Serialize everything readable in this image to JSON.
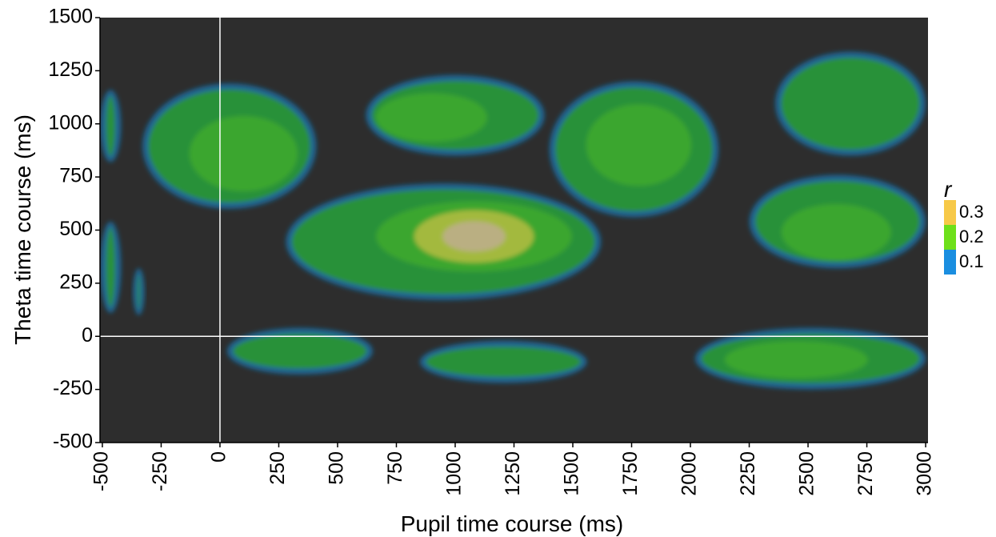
{
  "chart_data": {
    "type": "heatmap",
    "title": "",
    "xlabel": "Pupil time course (ms)",
    "ylabel": "Theta time course (ms)",
    "xlim": [
      -510,
      3010
    ],
    "ylim": [
      -500,
      1500
    ],
    "x_ticks": [
      -500,
      -250,
      0,
      250,
      500,
      750,
      1000,
      1250,
      1500,
      1750,
      2000,
      2250,
      2500,
      2750,
      3000
    ],
    "y_ticks": [
      -500,
      -250,
      0,
      250,
      500,
      750,
      1000,
      1250,
      1500
    ],
    "x_tick_labels": [
      "-500",
      "-250",
      "0",
      "250",
      "500",
      "750",
      "1000",
      "1250",
      "1500",
      "1750",
      "2000",
      "2250",
      "2500",
      "2750",
      "3000"
    ],
    "y_tick_labels": [
      "-500",
      "-250",
      "0",
      "250",
      "500",
      "750",
      "1000",
      "1250",
      "1500"
    ],
    "reference_lines": {
      "x": 0,
      "y": 0
    },
    "background_color": "#2d2d2d",
    "reference_line_color": "#ffffff",
    "legend": {
      "title": "r",
      "placement": "right",
      "entries": [
        {
          "label": "0.3",
          "value": 0.3,
          "color": "#f7c948"
        },
        {
          "label": "0.2",
          "value": 0.2,
          "color": "#6ee01a"
        },
        {
          "label": "0.1",
          "value": 0.1,
          "color": "#1a8ee0"
        }
      ]
    },
    "regions": [
      {
        "x_center": 1080,
        "y_center": 470,
        "x_extent": [
          280,
          1620
        ],
        "y_extent": [
          170,
          720
        ],
        "peak_r": 0.3
      },
      {
        "x_center": 1780,
        "y_center": 900,
        "x_extent": [
          1400,
          2120
        ],
        "y_extent": [
          560,
          1200
        ],
        "peak_r": 0.23
      },
      {
        "x_center": 900,
        "y_center": 1030,
        "x_extent": [
          620,
          1380
        ],
        "y_extent": [
          850,
          1230
        ],
        "peak_r": 0.21
      },
      {
        "x_center": 100,
        "y_center": 860,
        "x_extent": [
          -330,
          410
        ],
        "y_extent": [
          600,
          1190
        ],
        "peak_r": 0.2
      },
      {
        "x_center": 2620,
        "y_center": 490,
        "x_extent": [
          2250,
          3000
        ],
        "y_extent": [
          320,
          760
        ],
        "peak_r": 0.2
      },
      {
        "x_center": 2600,
        "y_center": 1030,
        "x_extent": [
          2360,
          3000
        ],
        "y_extent": [
          850,
          1340
        ],
        "peak_r": 0.15
      },
      {
        "x_center": 2450,
        "y_center": -110,
        "x_extent": [
          2020,
          3000
        ],
        "y_extent": [
          -250,
          40
        ],
        "peak_r": 0.2
      },
      {
        "x_center": 280,
        "y_center": -60,
        "x_extent": [
          30,
          650
        ],
        "y_extent": [
          -180,
          40
        ],
        "peak_r": 0.18
      },
      {
        "x_center": 1230,
        "y_center": -120,
        "x_extent": [
          850,
          1560
        ],
        "y_extent": [
          -220,
          -20
        ],
        "peak_r": 0.18
      },
      {
        "x_center": -480,
        "y_center": 1000,
        "x_extent": [
          -510,
          -420
        ],
        "y_extent": [
          820,
          1160
        ],
        "peak_r": 0.18
      },
      {
        "x_center": -480,
        "y_center": 320,
        "x_extent": [
          -510,
          -420
        ],
        "y_extent": [
          110,
          540
        ],
        "peak_r": 0.18
      },
      {
        "x_center": -345,
        "y_center": 230,
        "x_extent": [
          -370,
          -320
        ],
        "y_extent": [
          100,
          320
        ],
        "peak_r": 0.15
      }
    ]
  }
}
